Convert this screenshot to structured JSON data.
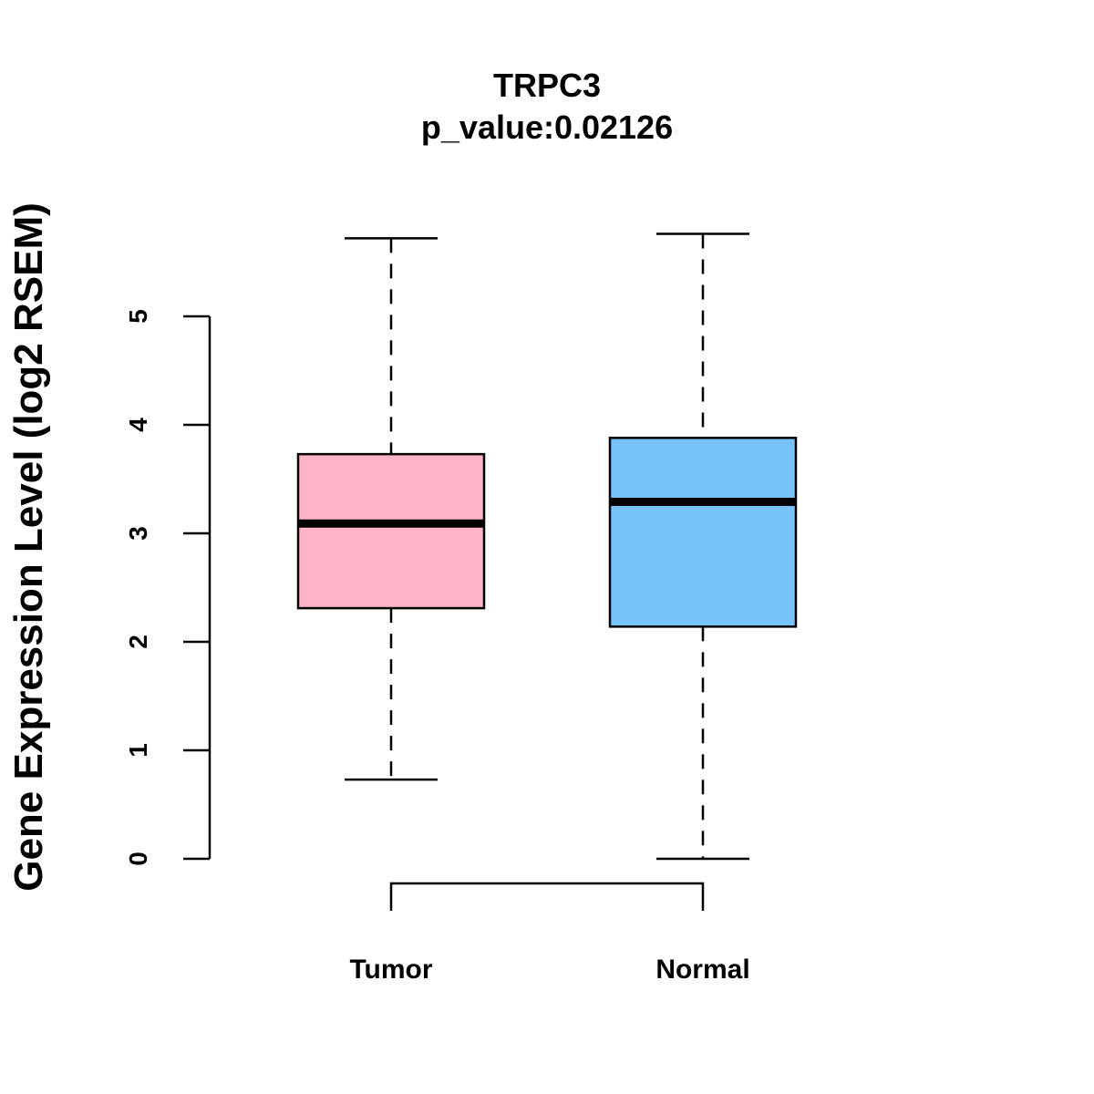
{
  "chart_data": {
    "type": "boxplot",
    "title": "TRPC3",
    "subtitle": "p_value:0.02126",
    "xlabel": "",
    "ylabel": "Gene Expression Level (log2 RSEM)",
    "ylim": [
      0,
      5
    ],
    "yticks": [
      0,
      1,
      2,
      3,
      4,
      5
    ],
    "grid": false,
    "categories": [
      "Tumor",
      "Normal"
    ],
    "series": [
      {
        "name": "Tumor",
        "min": 0.73,
        "q1": 2.31,
        "median": 3.09,
        "q3": 3.73,
        "max": 5.72,
        "color": "#FFB3C4"
      },
      {
        "name": "Normal",
        "min": 0.0,
        "q1": 2.14,
        "median": 3.29,
        "q3": 3.88,
        "max": 5.76,
        "color": "#78C2FA"
      }
    ],
    "comparison_bracket": [
      "Tumor",
      "Normal"
    ]
  }
}
